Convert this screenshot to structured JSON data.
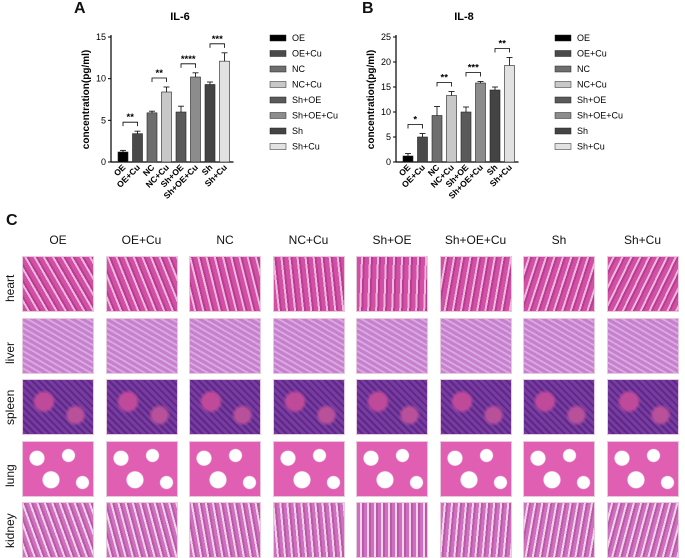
{
  "panels": {
    "A": "A",
    "B": "B",
    "C": "C"
  },
  "chart_data": [
    {
      "type": "bar",
      "title": "IL-6",
      "ylabel": "concentration(pg/ml)",
      "xlabel": "",
      "ylim": [
        0,
        15
      ],
      "yticks": [
        "0",
        "5",
        "10",
        "15"
      ],
      "categories": [
        "OE",
        "OE+Cu",
        "NC",
        "NC+Cu",
        "Sh+OE",
        "Sh+OE+Cu",
        "Sh",
        "Sh+Cu"
      ],
      "values": [
        1.2,
        3.4,
        5.9,
        8.4,
        6.0,
        10.2,
        9.3,
        12.1
      ],
      "errors": [
        0.2,
        0.3,
        0.2,
        0.6,
        0.7,
        0.5,
        0.3,
        1.0
      ],
      "colors": [
        "#000000",
        "#4a4a4a",
        "#6e6e6e",
        "#c8c8c8",
        "#5a5a5a",
        "#8c8c8c",
        "#444444",
        "#e2e2e2"
      ],
      "significance": [
        {
          "pair": [
            0,
            1
          ],
          "label": "**"
        },
        {
          "pair": [
            2,
            3
          ],
          "label": "**"
        },
        {
          "pair": [
            4,
            5
          ],
          "label": "****"
        },
        {
          "pair": [
            6,
            7
          ],
          "label": "***"
        }
      ],
      "legend": [
        "OE",
        "OE+Cu",
        "NC",
        "NC+Cu",
        "Sh+OE",
        "Sh+OE+Cu",
        "Sh",
        "Sh+Cu"
      ],
      "legend_position": "right"
    },
    {
      "type": "bar",
      "title": "IL-8",
      "ylabel": "concentration(pg/ml)",
      "xlabel": "",
      "ylim": [
        0,
        25
      ],
      "yticks": [
        "0",
        "5",
        "10",
        "15",
        "20",
        "25"
      ],
      "categories": [
        "OE",
        "OE+Cu",
        "NC",
        "NC+Cu",
        "Sh+OE",
        "Sh+OE+Cu",
        "Sh",
        "Sh+Cu"
      ],
      "values": [
        1.2,
        5.0,
        9.3,
        13.3,
        10.0,
        15.8,
        14.4,
        19.3
      ],
      "errors": [
        0.5,
        0.7,
        1.8,
        0.8,
        1.0,
        0.3,
        0.6,
        1.6
      ],
      "colors": [
        "#000000",
        "#4a4a4a",
        "#6e6e6e",
        "#c8c8c8",
        "#5a5a5a",
        "#8c8c8c",
        "#444444",
        "#e2e2e2"
      ],
      "significance": [
        {
          "pair": [
            0,
            1
          ],
          "label": "*"
        },
        {
          "pair": [
            2,
            3
          ],
          "label": "**"
        },
        {
          "pair": [
            4,
            5
          ],
          "label": "***"
        },
        {
          "pair": [
            6,
            7
          ],
          "label": "**"
        }
      ],
      "legend": [
        "OE",
        "OE+Cu",
        "NC",
        "NC+Cu",
        "Sh+OE",
        "Sh+OE+Cu",
        "Sh",
        "Sh+Cu"
      ],
      "legend_position": "right"
    }
  ],
  "histology": {
    "columns": [
      "OE",
      "OE+Cu",
      "NC",
      "NC+Cu",
      "Sh+OE",
      "Sh+OE+Cu",
      "Sh",
      "Sh+Cu"
    ],
    "rows": [
      "heart",
      "liver",
      "spleen",
      "lung",
      "kidney"
    ],
    "tile_colors": {
      "heart": "#d24fa6",
      "liver": "#c77fcf",
      "spleen": "#7a3aa0",
      "lung": "#e05fb3",
      "kidney": "#cf6fbf"
    }
  }
}
